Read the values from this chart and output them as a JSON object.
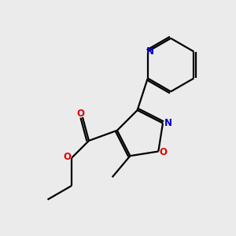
{
  "background_color": "#ebebeb",
  "bond_color": "#000000",
  "nitrogen_color": "#0000cc",
  "oxygen_color": "#dd0000",
  "line_width": 1.6,
  "dbo": 0.08,
  "figsize": [
    3.0,
    3.0
  ],
  "dpi": 100,
  "xlim": [
    0,
    10
  ],
  "ylim": [
    0,
    10
  ]
}
